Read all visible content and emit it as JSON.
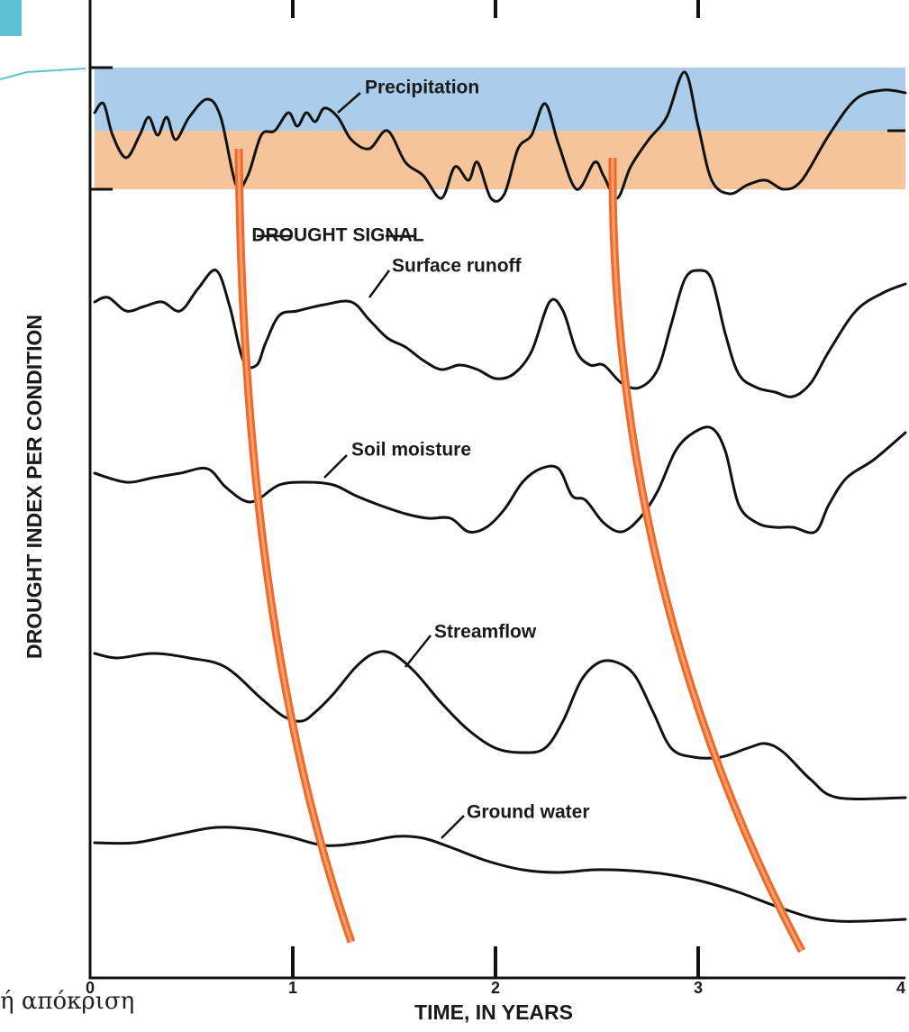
{
  "y_axis_label": "DROUGHT INDEX PER CONDITION",
  "x_axis": {
    "label": "TIME, IN YEARS",
    "ticks": [
      0,
      1,
      2,
      3,
      4
    ]
  },
  "curve_labels": {
    "precipitation": "Precipitation",
    "drought_signal": "DROUGHT SIGNAL",
    "surface_runoff": "Surface runoff",
    "soil_moisture": "Soil moisture",
    "streamflow": "Streamflow",
    "ground_water": "Ground water"
  },
  "caption": "ή απόκριση"
}
